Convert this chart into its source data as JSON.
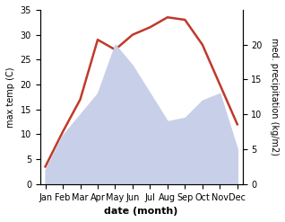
{
  "months": [
    "Jan",
    "Feb",
    "Mar",
    "Apr",
    "May",
    "Jun",
    "Jul",
    "Aug",
    "Sep",
    "Oct",
    "Nov",
    "Dec"
  ],
  "temp": [
    3.5,
    10.5,
    17.0,
    29.0,
    27.0,
    30.0,
    31.5,
    33.5,
    33.0,
    28.0,
    20.0,
    12.0
  ],
  "precip": [
    2.0,
    7.0,
    10.0,
    13.0,
    20.0,
    17.0,
    13.0,
    9.0,
    9.5,
    12.0,
    13.0,
    5.0
  ],
  "temp_color": "#c0392b",
  "precip_fill_color": "#c8cfe8",
  "precip_fill_alpha": 1.0,
  "temp_ylim": [
    0,
    35
  ],
  "precip_ylim": [
    0,
    25
  ],
  "precip_yticks": [
    0,
    5,
    10,
    15,
    20
  ],
  "temp_yticks": [
    0,
    5,
    10,
    15,
    20,
    25,
    30,
    35
  ],
  "xlabel": "date (month)",
  "ylabel_left": "max temp (C)",
  "ylabel_right": "med. precipitation (kg/m2)",
  "background_color": "#ffffff",
  "label_fontsize": 8,
  "tick_fontsize": 7,
  "line_width": 1.8
}
